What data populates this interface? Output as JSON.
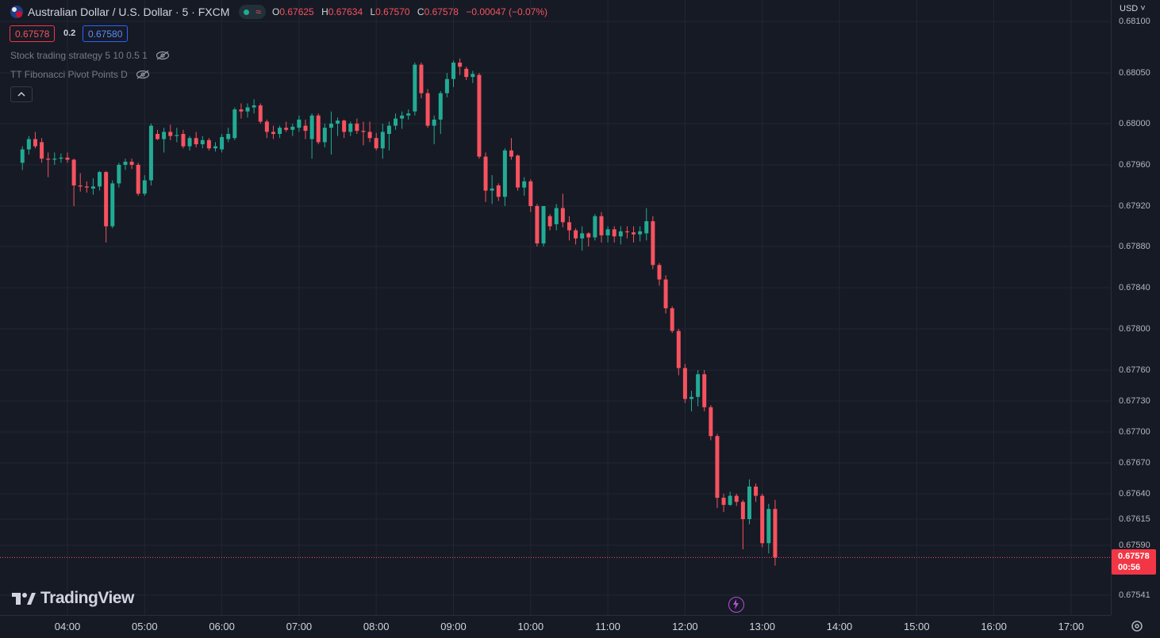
{
  "header": {
    "symbol_title": "Australian Dollar / U.S. Dollar · 5 · FXCM",
    "ohlc": {
      "o_label": "O",
      "o": "0.67625",
      "h_label": "H",
      "h": "0.67634",
      "l_label": "L",
      "l": "0.67570",
      "c_label": "C",
      "c": "0.67578",
      "change": "−0.00047 (−0.07%)"
    },
    "status_icons": [
      "market-open-dot-icon",
      "wave-icon"
    ]
  },
  "trade": {
    "sell_price": "0.67578",
    "spread": "0.2",
    "buy_price": "0.67580"
  },
  "indicators": [
    {
      "label": "Stock trading strategy 5 10 0.5 1"
    },
    {
      "label": "TT Fibonacci Pivot Points D"
    }
  ],
  "currency": "USD",
  "current_price": {
    "price": "0.67578",
    "countdown": "00:56"
  },
  "brand": "TradingView",
  "colors": {
    "up": "#22ab94",
    "down": "#f7525f",
    "background": "#161a25",
    "grid": "#232733"
  },
  "chart_data": {
    "type": "candlestick",
    "interval_minutes": 5,
    "x_ticks": [
      "04:00",
      "05:00",
      "06:00",
      "07:00",
      "08:00",
      "09:00",
      "10:00",
      "11:00",
      "12:00",
      "13:00",
      "14:00",
      "15:00",
      "16:00",
      "17:00"
    ],
    "y_ticks": [
      "0.68100",
      "0.68050",
      "0.68000",
      "0.67960",
      "0.67920",
      "0.67880",
      "0.67840",
      "0.67800",
      "0.67760",
      "0.67730",
      "0.67700",
      "0.67670",
      "0.67640",
      "0.67615",
      "0.67590",
      "0.67541"
    ],
    "candles": [
      {
        "t": "03:25",
        "o": 0.67962,
        "h": 0.67978,
        "l": 0.67955,
        "c": 0.67975
      },
      {
        "t": "03:30",
        "o": 0.67975,
        "h": 0.67988,
        "l": 0.6797,
        "c": 0.67985
      },
      {
        "t": "03:35",
        "o": 0.67985,
        "h": 0.67992,
        "l": 0.67976,
        "c": 0.67978
      },
      {
        "t": "03:40",
        "o": 0.67982,
        "h": 0.67986,
        "l": 0.67962,
        "c": 0.67966
      },
      {
        "t": "03:45",
        "o": 0.67966,
        "h": 0.67972,
        "l": 0.67948,
        "c": 0.67965
      },
      {
        "t": "03:50",
        "o": 0.67965,
        "h": 0.67972,
        "l": 0.6796,
        "c": 0.67966
      },
      {
        "t": "03:55",
        "o": 0.67966,
        "h": 0.67971,
        "l": 0.67962,
        "c": 0.67967
      },
      {
        "t": "04:00",
        "o": 0.67967,
        "h": 0.67972,
        "l": 0.67962,
        "c": 0.67965
      },
      {
        "t": "04:05",
        "o": 0.67965,
        "h": 0.67966,
        "l": 0.6792,
        "c": 0.6794
      },
      {
        "t": "04:10",
        "o": 0.6794,
        "h": 0.67952,
        "l": 0.67934,
        "c": 0.67939
      },
      {
        "t": "04:15",
        "o": 0.67939,
        "h": 0.67944,
        "l": 0.67933,
        "c": 0.67938
      },
      {
        "t": "04:20",
        "o": 0.67937,
        "h": 0.67947,
        "l": 0.67931,
        "c": 0.67939
      },
      {
        "t": "04:25",
        "o": 0.67939,
        "h": 0.67954,
        "l": 0.67935,
        "c": 0.67953
      },
      {
        "t": "04:30",
        "o": 0.67953,
        "h": 0.67954,
        "l": 0.67884,
        "c": 0.679
      },
      {
        "t": "04:35",
        "o": 0.679,
        "h": 0.67945,
        "l": 0.67898,
        "c": 0.67942
      },
      {
        "t": "04:40",
        "o": 0.67942,
        "h": 0.67962,
        "l": 0.67938,
        "c": 0.6796
      },
      {
        "t": "04:45",
        "o": 0.6796,
        "h": 0.67966,
        "l": 0.67955,
        "c": 0.67963
      },
      {
        "t": "04:50",
        "o": 0.67963,
        "h": 0.67966,
        "l": 0.67956,
        "c": 0.6796
      },
      {
        "t": "04:55",
        "o": 0.6796,
        "h": 0.67962,
        "l": 0.6793,
        "c": 0.67932
      },
      {
        "t": "05:00",
        "o": 0.67932,
        "h": 0.6795,
        "l": 0.6793,
        "c": 0.67945
      },
      {
        "t": "05:05",
        "o": 0.67945,
        "h": 0.68,
        "l": 0.6794,
        "c": 0.67998
      },
      {
        "t": "05:10",
        "o": 0.6799,
        "h": 0.67994,
        "l": 0.67984,
        "c": 0.67985
      },
      {
        "t": "05:15",
        "o": 0.67985,
        "h": 0.67996,
        "l": 0.67972,
        "c": 0.67992
      },
      {
        "t": "05:20",
        "o": 0.67992,
        "h": 0.67999,
        "l": 0.67984,
        "c": 0.67988
      },
      {
        "t": "05:25",
        "o": 0.67988,
        "h": 0.67996,
        "l": 0.67982,
        "c": 0.67989
      },
      {
        "t": "05:30",
        "o": 0.6799,
        "h": 0.67994,
        "l": 0.67976,
        "c": 0.67978
      },
      {
        "t": "05:35",
        "o": 0.67978,
        "h": 0.67988,
        "l": 0.67974,
        "c": 0.67986
      },
      {
        "t": "05:40",
        "o": 0.67986,
        "h": 0.67992,
        "l": 0.67977,
        "c": 0.6798
      },
      {
        "t": "05:45",
        "o": 0.6798,
        "h": 0.67988,
        "l": 0.67976,
        "c": 0.67984
      },
      {
        "t": "05:50",
        "o": 0.67984,
        "h": 0.67986,
        "l": 0.67974,
        "c": 0.67976
      },
      {
        "t": "05:55",
        "o": 0.67976,
        "h": 0.67982,
        "l": 0.67973,
        "c": 0.67978
      },
      {
        "t": "06:00",
        "o": 0.67975,
        "h": 0.6799,
        "l": 0.67972,
        "c": 0.67987
      },
      {
        "t": "06:05",
        "o": 0.67985,
        "h": 0.67996,
        "l": 0.67982,
        "c": 0.6799
      },
      {
        "t": "06:10",
        "o": 0.67986,
        "h": 0.68016,
        "l": 0.67984,
        "c": 0.68014
      },
      {
        "t": "06:15",
        "o": 0.68014,
        "h": 0.6802,
        "l": 0.68005,
        "c": 0.68012
      },
      {
        "t": "06:20",
        "o": 0.68012,
        "h": 0.6802,
        "l": 0.68006,
        "c": 0.68016
      },
      {
        "t": "06:25",
        "o": 0.68016,
        "h": 0.68024,
        "l": 0.6801,
        "c": 0.68018
      },
      {
        "t": "06:30",
        "o": 0.68018,
        "h": 0.6802,
        "l": 0.68,
        "c": 0.68002
      },
      {
        "t": "06:35",
        "o": 0.68002,
        "h": 0.68004,
        "l": 0.67986,
        "c": 0.67992
      },
      {
        "t": "06:40",
        "o": 0.67992,
        "h": 0.67998,
        "l": 0.67985,
        "c": 0.6799
      },
      {
        "t": "06:45",
        "o": 0.6799,
        "h": 0.67998,
        "l": 0.67986,
        "c": 0.67996
      },
      {
        "t": "06:50",
        "o": 0.67996,
        "h": 0.68002,
        "l": 0.67992,
        "c": 0.67994
      },
      {
        "t": "06:55",
        "o": 0.67994,
        "h": 0.68,
        "l": 0.67988,
        "c": 0.67997
      },
      {
        "t": "07:00",
        "o": 0.67996,
        "h": 0.68008,
        "l": 0.67992,
        "c": 0.68004
      },
      {
        "t": "07:05",
        "o": 0.67998,
        "h": 0.68004,
        "l": 0.67985,
        "c": 0.67993
      },
      {
        "t": "07:10",
        "o": 0.67985,
        "h": 0.6801,
        "l": 0.67966,
        "c": 0.68008
      },
      {
        "t": "07:15",
        "o": 0.68008,
        "h": 0.6801,
        "l": 0.6798,
        "c": 0.67982
      },
      {
        "t": "07:20",
        "o": 0.67982,
        "h": 0.68,
        "l": 0.67977,
        "c": 0.67996
      },
      {
        "t": "07:25",
        "o": 0.67996,
        "h": 0.68012,
        "l": 0.6797,
        "c": 0.68
      },
      {
        "t": "07:30",
        "o": 0.68,
        "h": 0.68006,
        "l": 0.67988,
        "c": 0.68003
      },
      {
        "t": "07:35",
        "o": 0.68003,
        "h": 0.68004,
        "l": 0.67986,
        "c": 0.67992
      },
      {
        "t": "07:40",
        "o": 0.67992,
        "h": 0.68002,
        "l": 0.67988,
        "c": 0.68
      },
      {
        "t": "07:45",
        "o": 0.68,
        "h": 0.68005,
        "l": 0.6799,
        "c": 0.67993
      },
      {
        "t": "07:50",
        "o": 0.67993,
        "h": 0.68002,
        "l": 0.67979,
        "c": 0.67992
      },
      {
        "t": "07:55",
        "o": 0.67992,
        "h": 0.68002,
        "l": 0.67982,
        "c": 0.67986
      },
      {
        "t": "08:00",
        "o": 0.67986,
        "h": 0.67991,
        "l": 0.67974,
        "c": 0.67976
      },
      {
        "t": "08:05",
        "o": 0.67976,
        "h": 0.68,
        "l": 0.67966,
        "c": 0.67992
      },
      {
        "t": "08:10",
        "o": 0.6799,
        "h": 0.68002,
        "l": 0.67974,
        "c": 0.67998
      },
      {
        "t": "08:15",
        "o": 0.67998,
        "h": 0.6801,
        "l": 0.67994,
        "c": 0.68005
      },
      {
        "t": "08:20",
        "o": 0.68005,
        "h": 0.68012,
        "l": 0.67995,
        "c": 0.68008
      },
      {
        "t": "08:25",
        "o": 0.68008,
        "h": 0.68014,
        "l": 0.68004,
        "c": 0.6801
      },
      {
        "t": "08:30",
        "o": 0.68012,
        "h": 0.6806,
        "l": 0.68008,
        "c": 0.68058
      },
      {
        "t": "08:35",
        "o": 0.68058,
        "h": 0.6806,
        "l": 0.68025,
        "c": 0.6803
      },
      {
        "t": "08:40",
        "o": 0.6803,
        "h": 0.68034,
        "l": 0.67996,
        "c": 0.67998
      },
      {
        "t": "08:45",
        "o": 0.67998,
        "h": 0.68008,
        "l": 0.6798,
        "c": 0.68004
      },
      {
        "t": "08:50",
        "o": 0.68004,
        "h": 0.68032,
        "l": 0.6799,
        "c": 0.6803
      },
      {
        "t": "08:55",
        "o": 0.6803,
        "h": 0.6805,
        "l": 0.68026,
        "c": 0.68044
      },
      {
        "t": "09:00",
        "o": 0.68044,
        "h": 0.68062,
        "l": 0.68036,
        "c": 0.6806
      },
      {
        "t": "09:05",
        "o": 0.6806,
        "h": 0.68064,
        "l": 0.68048,
        "c": 0.68056
      },
      {
        "t": "09:10",
        "o": 0.68054,
        "h": 0.68056,
        "l": 0.68043,
        "c": 0.68046
      },
      {
        "t": "09:15",
        "o": 0.68046,
        "h": 0.68052,
        "l": 0.6804,
        "c": 0.68049
      },
      {
        "t": "09:20",
        "o": 0.68048,
        "h": 0.6805,
        "l": 0.67966,
        "c": 0.67968
      },
      {
        "t": "09:25",
        "o": 0.67968,
        "h": 0.67972,
        "l": 0.67924,
        "c": 0.67935
      },
      {
        "t": "09:30",
        "o": 0.67935,
        "h": 0.6795,
        "l": 0.67922,
        "c": 0.67937
      },
      {
        "t": "09:35",
        "o": 0.6794,
        "h": 0.67942,
        "l": 0.67925,
        "c": 0.67929
      },
      {
        "t": "09:40",
        "o": 0.67929,
        "h": 0.67976,
        "l": 0.6792,
        "c": 0.67974
      },
      {
        "t": "09:45",
        "o": 0.67974,
        "h": 0.67986,
        "l": 0.67965,
        "c": 0.67968
      },
      {
        "t": "09:50",
        "o": 0.67969,
        "h": 0.6797,
        "l": 0.67935,
        "c": 0.67938
      },
      {
        "t": "09:55",
        "o": 0.67938,
        "h": 0.67948,
        "l": 0.6793,
        "c": 0.67944
      },
      {
        "t": "10:00",
        "o": 0.67944,
        "h": 0.67946,
        "l": 0.67914,
        "c": 0.6792
      },
      {
        "t": "10:05",
        "o": 0.6792,
        "h": 0.67922,
        "l": 0.6788,
        "c": 0.67883
      },
      {
        "t": "10:10",
        "o": 0.67883,
        "h": 0.6792,
        "l": 0.6788,
        "c": 0.6792
      },
      {
        "t": "10:15",
        "o": 0.6791,
        "h": 0.67912,
        "l": 0.67896,
        "c": 0.679
      },
      {
        "t": "10:20",
        "o": 0.67902,
        "h": 0.67922,
        "l": 0.67896,
        "c": 0.67918
      },
      {
        "t": "10:25",
        "o": 0.67918,
        "h": 0.67932,
        "l": 0.67899,
        "c": 0.67904
      },
      {
        "t": "10:30",
        "o": 0.67904,
        "h": 0.6791,
        "l": 0.67886,
        "c": 0.67896
      },
      {
        "t": "10:35",
        "o": 0.67896,
        "h": 0.67898,
        "l": 0.67882,
        "c": 0.67888
      },
      {
        "t": "10:40",
        "o": 0.67888,
        "h": 0.679,
        "l": 0.67876,
        "c": 0.67893
      },
      {
        "t": "10:45",
        "o": 0.67893,
        "h": 0.67894,
        "l": 0.6788,
        "c": 0.67889
      },
      {
        "t": "10:50",
        "o": 0.67889,
        "h": 0.67912,
        "l": 0.67886,
        "c": 0.6791
      },
      {
        "t": "10:55",
        "o": 0.6791,
        "h": 0.67914,
        "l": 0.67884,
        "c": 0.67891
      },
      {
        "t": "11:00",
        "o": 0.67891,
        "h": 0.679,
        "l": 0.67884,
        "c": 0.67897
      },
      {
        "t": "11:05",
        "o": 0.67897,
        "h": 0.679,
        "l": 0.67884,
        "c": 0.6789
      },
      {
        "t": "11:10",
        "o": 0.6789,
        "h": 0.679,
        "l": 0.67882,
        "c": 0.67895
      },
      {
        "t": "11:15",
        "o": 0.67895,
        "h": 0.679,
        "l": 0.67888,
        "c": 0.67894
      },
      {
        "t": "11:20",
        "o": 0.67894,
        "h": 0.679,
        "l": 0.67884,
        "c": 0.67892
      },
      {
        "t": "11:25",
        "o": 0.67892,
        "h": 0.679,
        "l": 0.67885,
        "c": 0.67895
      },
      {
        "t": "11:30",
        "o": 0.67893,
        "h": 0.67918,
        "l": 0.67886,
        "c": 0.67905
      },
      {
        "t": "11:35",
        "o": 0.67905,
        "h": 0.6791,
        "l": 0.67858,
        "c": 0.67862
      },
      {
        "t": "11:40",
        "o": 0.67862,
        "h": 0.67864,
        "l": 0.67842,
        "c": 0.67848
      },
      {
        "t": "11:45",
        "o": 0.67848,
        "h": 0.67852,
        "l": 0.67815,
        "c": 0.6782
      },
      {
        "t": "11:50",
        "o": 0.6782,
        "h": 0.67822,
        "l": 0.67796,
        "c": 0.67798
      },
      {
        "t": "11:55",
        "o": 0.67798,
        "h": 0.678,
        "l": 0.67755,
        "c": 0.67762
      },
      {
        "t": "12:00",
        "o": 0.67762,
        "h": 0.67766,
        "l": 0.67728,
        "c": 0.67732
      },
      {
        "t": "12:05",
        "o": 0.67732,
        "h": 0.6774,
        "l": 0.6772,
        "c": 0.67734
      },
      {
        "t": "12:10",
        "o": 0.67734,
        "h": 0.6776,
        "l": 0.67725,
        "c": 0.67756
      },
      {
        "t": "12:15",
        "o": 0.67756,
        "h": 0.6776,
        "l": 0.6772,
        "c": 0.67724
      },
      {
        "t": "12:20",
        "o": 0.67724,
        "h": 0.67726,
        "l": 0.67692,
        "c": 0.67696
      },
      {
        "t": "12:25",
        "o": 0.67696,
        "h": 0.67698,
        "l": 0.67626,
        "c": 0.67636
      },
      {
        "t": "12:30",
        "o": 0.67636,
        "h": 0.6764,
        "l": 0.67622,
        "c": 0.67629
      },
      {
        "t": "12:35",
        "o": 0.67629,
        "h": 0.67642,
        "l": 0.67628,
        "c": 0.67638
      },
      {
        "t": "12:40",
        "o": 0.67638,
        "h": 0.6764,
        "l": 0.67628,
        "c": 0.67632
      },
      {
        "t": "12:45",
        "o": 0.67632,
        "h": 0.67634,
        "l": 0.67586,
        "c": 0.67615
      },
      {
        "t": "12:50",
        "o": 0.67615,
        "h": 0.67654,
        "l": 0.6761,
        "c": 0.67647
      },
      {
        "t": "12:55",
        "o": 0.67647,
        "h": 0.6765,
        "l": 0.67632,
        "c": 0.67638
      },
      {
        "t": "13:00",
        "o": 0.67638,
        "h": 0.6764,
        "l": 0.67588,
        "c": 0.67592
      },
      {
        "t": "13:05",
        "o": 0.67592,
        "h": 0.6763,
        "l": 0.67582,
        "c": 0.67625
      },
      {
        "t": "13:10",
        "o": 0.67625,
        "h": 0.67634,
        "l": 0.6757,
        "c": 0.67578
      }
    ],
    "last_price": 0.67578
  }
}
